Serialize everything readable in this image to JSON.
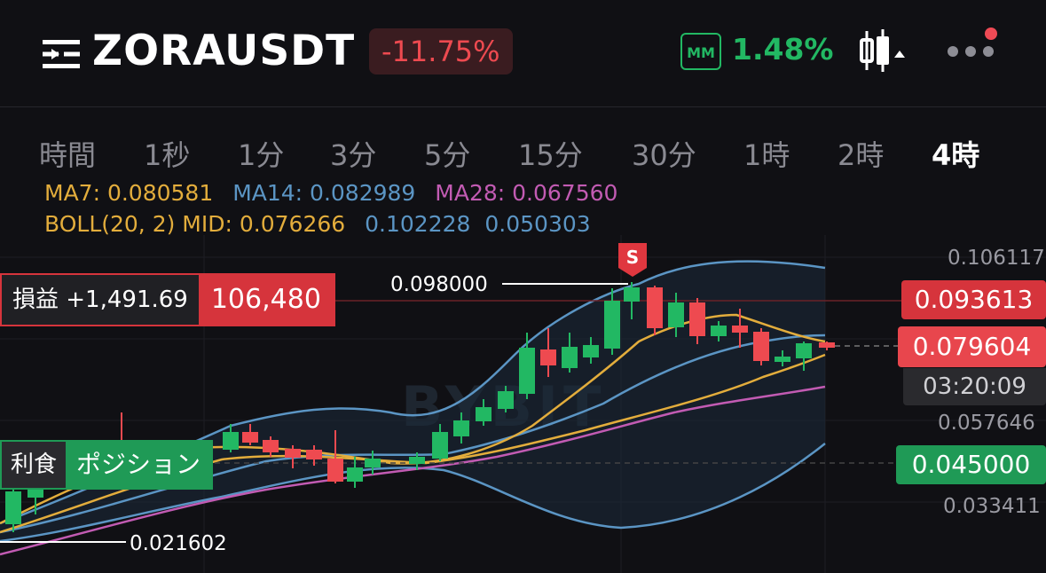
{
  "header": {
    "symbol": "ZORAUSDT",
    "change": "-11.75%",
    "mm_label": "MM",
    "mm_value": "1.48%"
  },
  "timeframes": {
    "items": [
      "時間",
      "1秒",
      "1分",
      "3分",
      "5分",
      "15分",
      "30分",
      "1時",
      "2時",
      "4時"
    ],
    "active": "4時"
  },
  "indicators": {
    "ma7": "MA7: 0.080581",
    "ma14": "MA14: 0.082989",
    "ma28": "MA28: 0.067560",
    "boll": "BOLL(20, 2) MID: 0.076266",
    "boll_upper": "0.102228",
    "boll_lower": "0.050303",
    "colors": {
      "ma7": "#e3ad3c",
      "ma14": "#5b95c4",
      "ma28": "#c25bb3",
      "boll": "#e3ad3c",
      "boll_band": "#5b95c4"
    }
  },
  "axis": {
    "p1": "0.106117",
    "p2": "0.057646",
    "p3": "0.033411"
  },
  "tags": {
    "sell_price": "0.093613",
    "last_price": "0.079604",
    "countdown": "03:20:09",
    "buy_price": "0.045000"
  },
  "annotations": {
    "high": "0.098000",
    "low": "0.021602",
    "signal": "S"
  },
  "position": {
    "pnl_label": "損益 +1,491.69",
    "qty": "106,480"
  },
  "take_profit": {
    "label": "利食",
    "position": "ポジション"
  },
  "watermark": "BYBIT"
}
